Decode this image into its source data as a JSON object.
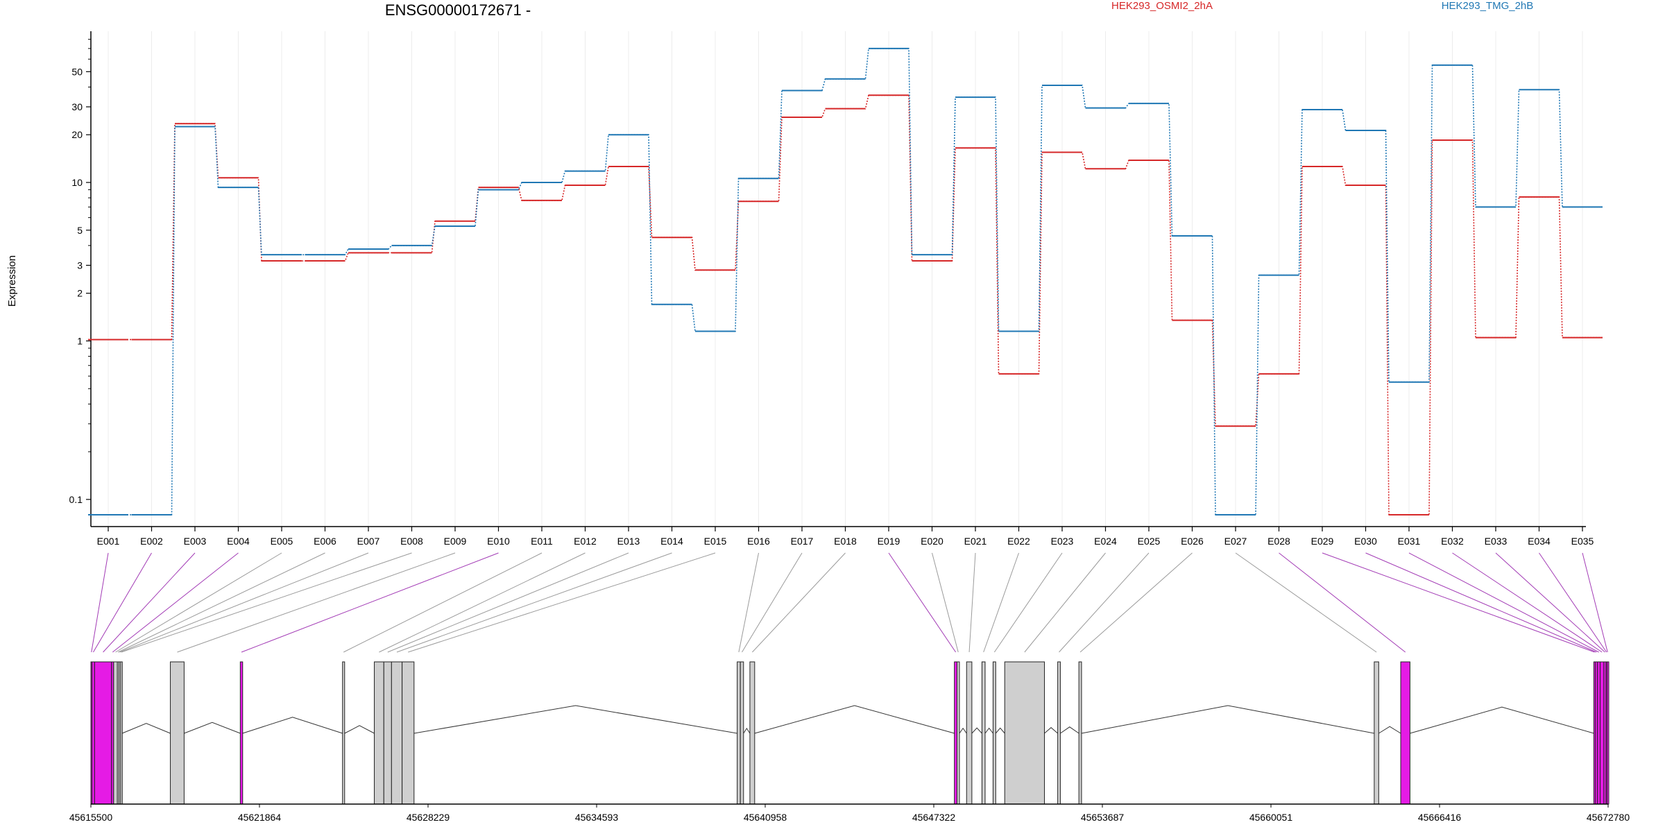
{
  "chart_data": {
    "type": "line",
    "title": "ENSG00000172671 -",
    "ylabel": "Expression",
    "y_scale": "log",
    "ylim": [
      0.08,
      90
    ],
    "yticks": [
      0.1,
      1,
      2,
      3,
      5,
      10,
      20,
      30,
      50
    ],
    "ytick_labels": [
      "0.1",
      "1",
      "2",
      "3",
      "5",
      "10",
      "20",
      "30",
      "50"
    ],
    "grid": "vertical-light",
    "categories": [
      "E001",
      "E002",
      "E003",
      "E004",
      "E005",
      "E006",
      "E007",
      "E008",
      "E009",
      "E010",
      "E011",
      "E012",
      "E013",
      "E014",
      "E015",
      "E016",
      "E017",
      "E018",
      "E019",
      "E020",
      "E021",
      "E022",
      "E023",
      "E024",
      "E025",
      "E026",
      "E027",
      "E028",
      "E029",
      "E030",
      "E031",
      "E032",
      "E033",
      "E034",
      "E035"
    ],
    "series": [
      {
        "name": "HEK293_OSMI2_2hA",
        "color": "#d62728",
        "values": [
          1.02,
          1.02,
          23.5,
          10.7,
          3.2,
          3.2,
          3.6,
          3.6,
          5.7,
          9.3,
          7.7,
          9.6,
          12.6,
          4.5,
          2.8,
          7.6,
          25.8,
          29.2,
          35.5,
          3.2,
          16.5,
          0.62,
          15.5,
          12.2,
          13.8,
          1.35,
          0.29,
          0.62,
          12.6,
          9.6,
          0.08,
          18.5,
          1.05,
          8.1,
          1.05
        ]
      },
      {
        "name": "HEK293_TMG_2hB",
        "color": "#1f77b4",
        "values": [
          0.08,
          0.08,
          22.5,
          9.3,
          3.5,
          3.5,
          3.8,
          4.0,
          5.3,
          9.0,
          10.0,
          11.8,
          20.0,
          1.7,
          1.15,
          10.6,
          38.0,
          45.0,
          70.0,
          3.5,
          34.5,
          1.15,
          41.0,
          29.5,
          31.5,
          4.6,
          0.08,
          2.6,
          28.8,
          21.3,
          0.55,
          55.0,
          7.0,
          38.5,
          7.0
        ]
      }
    ],
    "gene_axis": {
      "start": 45615500,
      "end": 45672780,
      "ticks": [
        45615500,
        45621864,
        45628229,
        45634593,
        45640958,
        45647322,
        45653687,
        45660051,
        45666416,
        45672780
      ],
      "tick_labels": [
        "45615500",
        "45621864",
        "45628229",
        "45634593",
        "45640958",
        "45647322",
        "45653687",
        "45660051",
        "45666416",
        "45672780"
      ]
    },
    "exon_blocks": [
      {
        "id": "E001",
        "start": 45615500,
        "end": 45615540,
        "highlight": true
      },
      {
        "id": "E002",
        "start": 45615540,
        "end": 45615640,
        "highlight": true
      },
      {
        "id": "E003",
        "start": 45615640,
        "end": 45616280,
        "highlight": true
      },
      {
        "id": "E004",
        "start": 45616280,
        "end": 45616360,
        "highlight": true
      },
      {
        "id": "E005",
        "start": 45616360,
        "end": 45616500,
        "highlight": false
      },
      {
        "id": "E006",
        "start": 45616500,
        "end": 45616560,
        "highlight": false
      },
      {
        "id": "E007",
        "start": 45616560,
        "end": 45616620,
        "highlight": false
      },
      {
        "id": "E008",
        "start": 45616620,
        "end": 45616680,
        "highlight": false
      },
      {
        "id": "E009",
        "start": 45618500,
        "end": 45619020,
        "highlight": false
      },
      {
        "id": "E010",
        "start": 45621140,
        "end": 45621230,
        "highlight": true
      },
      {
        "id": "E011",
        "start": 45625000,
        "end": 45625080,
        "highlight": false
      },
      {
        "id": "E012",
        "start": 45626200,
        "end": 45626560,
        "highlight": false
      },
      {
        "id": "E013",
        "start": 45626560,
        "end": 45626850,
        "highlight": false
      },
      {
        "id": "E014",
        "start": 45626850,
        "end": 45627250,
        "highlight": false
      },
      {
        "id": "E015",
        "start": 45627250,
        "end": 45627700,
        "highlight": false
      },
      {
        "id": "E016",
        "start": 45639900,
        "end": 45640020,
        "highlight": false
      },
      {
        "id": "E017",
        "start": 45640020,
        "end": 45640140,
        "highlight": false
      },
      {
        "id": "E018",
        "start": 45640380,
        "end": 45640560,
        "highlight": false
      },
      {
        "id": "E019",
        "start": 45648100,
        "end": 45648200,
        "highlight": true
      },
      {
        "id": "E020",
        "start": 45648200,
        "end": 45648290,
        "highlight": false
      },
      {
        "id": "E021",
        "start": 45648560,
        "end": 45648760,
        "highlight": false
      },
      {
        "id": "E022",
        "start": 45649140,
        "end": 45649260,
        "highlight": false
      },
      {
        "id": "E023",
        "start": 45649560,
        "end": 45649660,
        "highlight": false
      },
      {
        "id": "E024",
        "start": 45650000,
        "end": 45651500,
        "highlight": false
      },
      {
        "id": "E025",
        "start": 45652000,
        "end": 45652100,
        "highlight": false
      },
      {
        "id": "E026",
        "start": 45652800,
        "end": 45652900,
        "highlight": false
      },
      {
        "id": "E027",
        "start": 45663950,
        "end": 45664120,
        "highlight": false
      },
      {
        "id": "E028",
        "start": 45664950,
        "end": 45665300,
        "highlight": true
      },
      {
        "id": "E029",
        "start": 45672240,
        "end": 45672300,
        "highlight": true
      },
      {
        "id": "E030",
        "start": 45672300,
        "end": 45672380,
        "highlight": true
      },
      {
        "id": "E031",
        "start": 45672380,
        "end": 45672480,
        "highlight": true
      },
      {
        "id": "E032",
        "start": 45672480,
        "end": 45672620,
        "highlight": true
      },
      {
        "id": "E033",
        "start": 45672620,
        "end": 45672700,
        "highlight": true
      },
      {
        "id": "E034",
        "start": 45672700,
        "end": 45672740,
        "highlight": true
      },
      {
        "id": "E035",
        "start": 45672740,
        "end": 45672780,
        "highlight": true
      }
    ],
    "exon_link_highlight": [
      true,
      true,
      true,
      true,
      false,
      false,
      false,
      false,
      false,
      true,
      false,
      false,
      false,
      false,
      false,
      false,
      false,
      false,
      true,
      false,
      false,
      false,
      false,
      false,
      false,
      false,
      false,
      true,
      true,
      true,
      true,
      true,
      true,
      true,
      true
    ]
  }
}
